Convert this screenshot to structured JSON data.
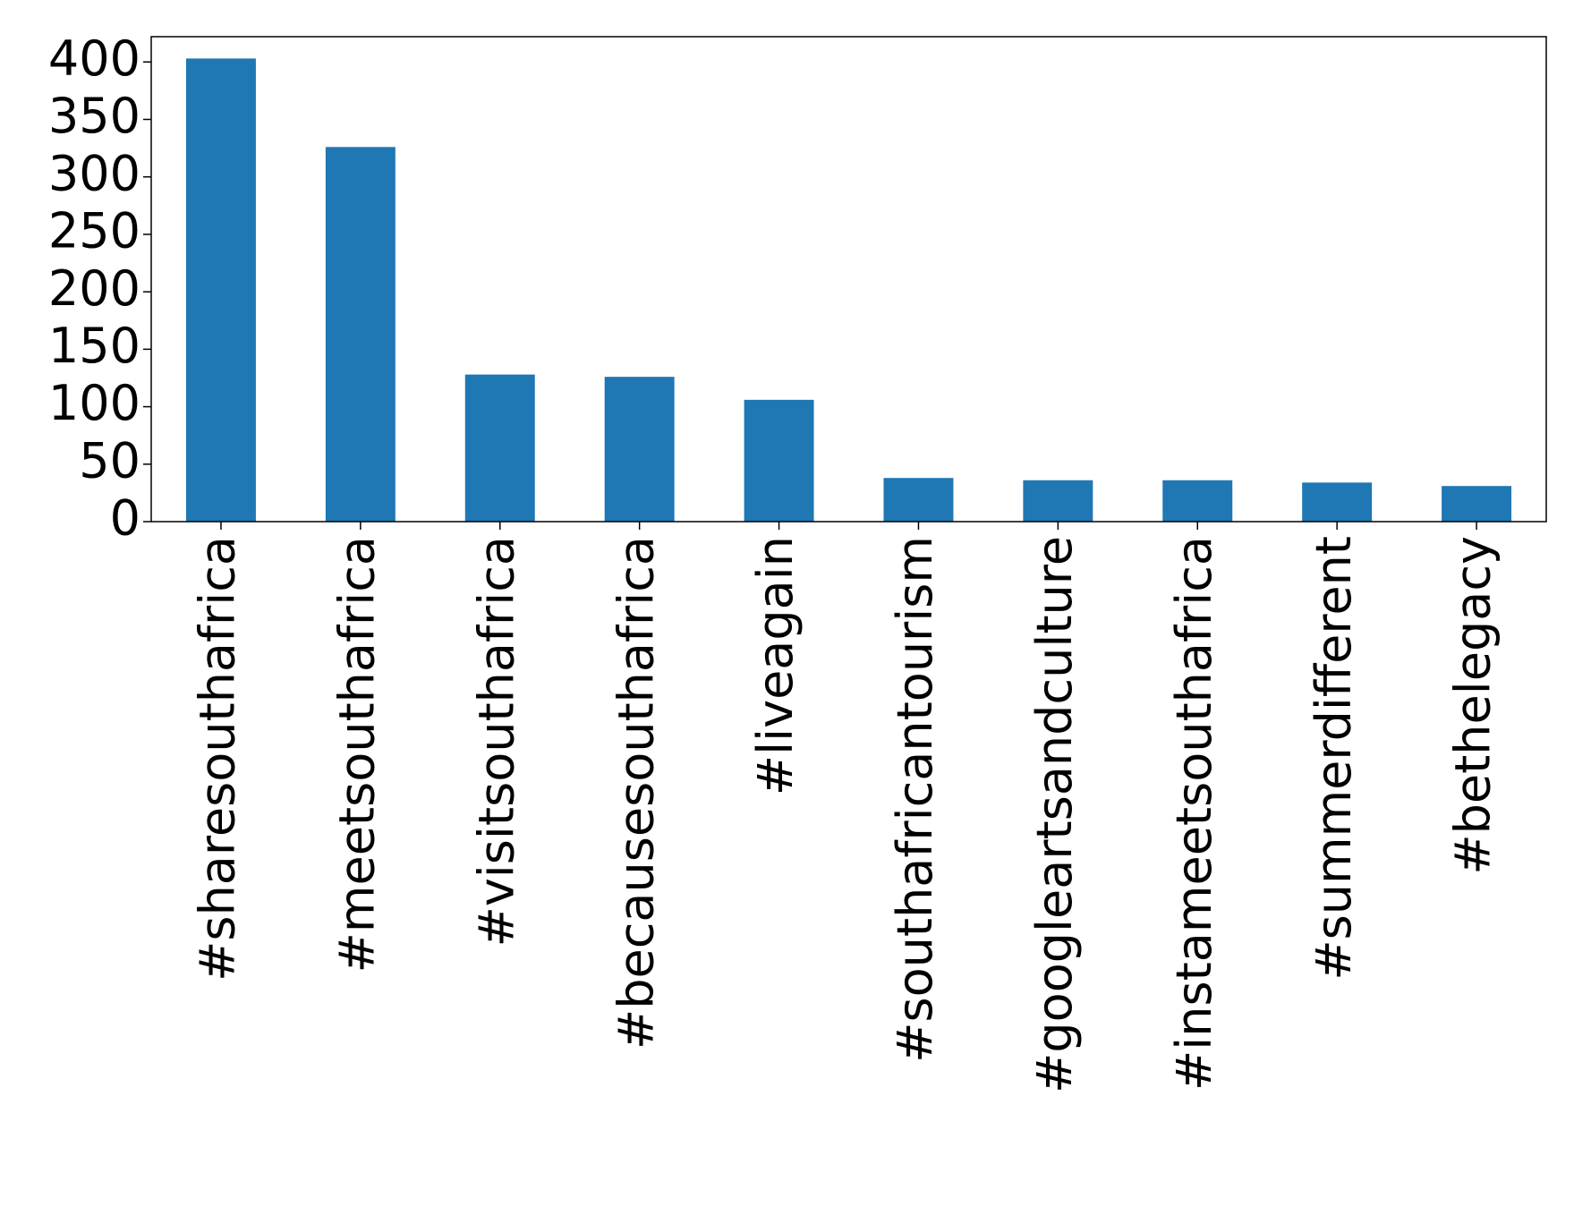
{
  "chart_data": {
    "type": "bar",
    "categories": [
      "#sharesouthafrica",
      "#meetsouthafrica",
      "#visitsouthafrica",
      "#becausesouthafrica",
      "#liveagain",
      "#southafricantourism",
      "#googleartsandculture",
      "#instameetsouthafrica",
      "#summerdifferent",
      "#bethelegacy"
    ],
    "values": [
      403,
      326,
      128,
      126,
      106,
      38,
      36,
      36,
      34,
      31
    ],
    "color": "#1f77b4",
    "ylim": [
      0,
      422
    ],
    "yticks": [
      0,
      50,
      100,
      150,
      200,
      250,
      300,
      350,
      400
    ],
    "grid": false
  }
}
